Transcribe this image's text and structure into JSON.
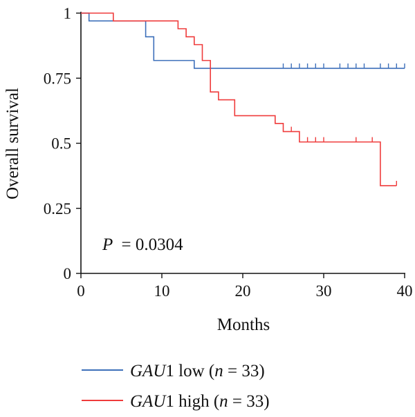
{
  "chart_data": {
    "type": "line",
    "subtype": "kaplan-meier",
    "xlabel": "Months",
    "ylabel": "Overall survival",
    "xlim": [
      0,
      40
    ],
    "ylim": [
      0,
      1
    ],
    "xticks": [
      "0",
      "10",
      "20",
      "30",
      "40"
    ],
    "yticks": [
      "0",
      "0.25",
      "0.5",
      "0.75",
      "1"
    ],
    "grid": false,
    "annotation": {
      "p_label": "P",
      "p_value": "= 0.0304"
    },
    "legend_position": "bottom",
    "series": [
      {
        "name_gene": "GAU",
        "name_suffix": "1 low (",
        "name_n": "n",
        "name_count": " = 33)",
        "color": "#3c6fba",
        "steps": [
          [
            0,
            1.0
          ],
          [
            1,
            0.97
          ],
          [
            8,
            0.909
          ],
          [
            9,
            0.818
          ],
          [
            14,
            0.788
          ],
          [
            40,
            0.788
          ]
        ],
        "censored": [
          25,
          26,
          27,
          28,
          29,
          30,
          32,
          33,
          34,
          35,
          37,
          38,
          39,
          40
        ]
      },
      {
        "name_gene": "GAU",
        "name_suffix": "1 high (",
        "name_n": "n",
        "name_count": " = 33)",
        "color": "#ef3b3b",
        "steps": [
          [
            0,
            1.0
          ],
          [
            4,
            0.97
          ],
          [
            12,
            0.94
          ],
          [
            13,
            0.909
          ],
          [
            14,
            0.879
          ],
          [
            15,
            0.818
          ],
          [
            16,
            0.697
          ],
          [
            17,
            0.667
          ],
          [
            19,
            0.606
          ],
          [
            24,
            0.576
          ],
          [
            25,
            0.545
          ],
          [
            27,
            0.505
          ],
          [
            37,
            0.337
          ],
          [
            39,
            0.337
          ]
        ],
        "censored": [
          26,
          28,
          29,
          30,
          34,
          36,
          39
        ]
      }
    ]
  }
}
